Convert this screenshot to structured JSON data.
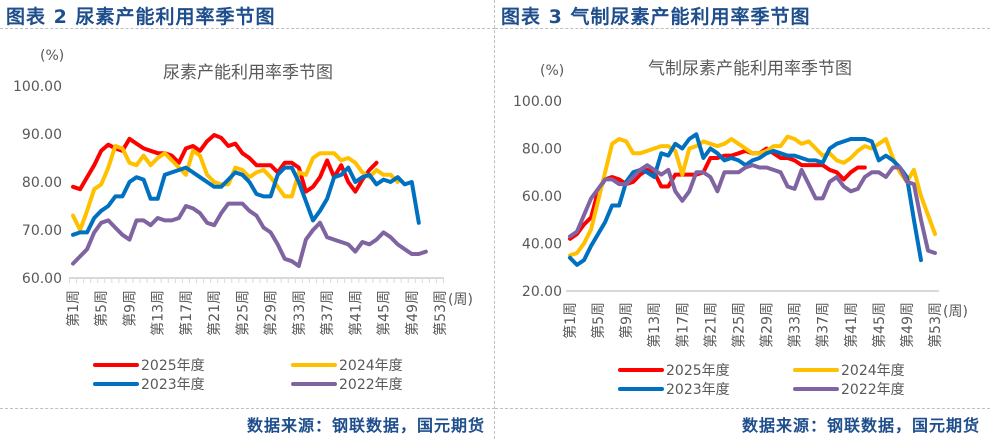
{
  "figures": [
    {
      "fig_title": "图表 2 尿素产能利用率季节图",
      "source": "数据来源：钢联数据，国元期货"
    },
    {
      "fig_title": "图表 3 气制尿素产能利用率季节图",
      "source": "数据来源：钢联数据，国元期货"
    }
  ],
  "chart_data": [
    {
      "type": "line",
      "title": "尿素产能利用率季节图",
      "ylabel": "(%)",
      "xlabel": "(周)",
      "ylim": [
        60,
        100
      ],
      "yticks": [
        "60.00",
        "70.00",
        "80.00",
        "90.00",
        "100.00"
      ],
      "ytick_values": [
        60,
        70,
        80,
        90,
        100
      ],
      "x": [
        1,
        2,
        3,
        4,
        5,
        6,
        7,
        8,
        9,
        10,
        11,
        12,
        13,
        14,
        15,
        16,
        17,
        18,
        19,
        20,
        21,
        22,
        23,
        24,
        25,
        26,
        27,
        28,
        29,
        30,
        31,
        32,
        33,
        34,
        35,
        36,
        37,
        38,
        39,
        40,
        41,
        42,
        43,
        44,
        45,
        46,
        47,
        48,
        49,
        50,
        51,
        52,
        53
      ],
      "xtick_labels": [
        "第1周",
        "第5周",
        "第9周",
        "第13周",
        "第17周",
        "第21周",
        "第25周",
        "第29周",
        "第33周",
        "第37周",
        "第41周",
        "第45周",
        "第49周",
        "第53周"
      ],
      "xtick_weeks": [
        1,
        5,
        9,
        13,
        17,
        21,
        25,
        29,
        33,
        37,
        41,
        45,
        49,
        53
      ],
      "grid": false,
      "legend": "bottom",
      "series": [
        {
          "name": "2025年度",
          "color": "#ff0000",
          "values": [
            79,
            78.5,
            81,
            83.5,
            86.5,
            87.8,
            87,
            86.5,
            89,
            88,
            87,
            86.5,
            86,
            86,
            85.5,
            84,
            87,
            87.5,
            86.5,
            88.5,
            89.8,
            89.2,
            87.5,
            88,
            86,
            85,
            83.5,
            83.5,
            83.5,
            82,
            84,
            84,
            83,
            78,
            79,
            81,
            84.5,
            81,
            83.5,
            80,
            78,
            80.5,
            82.5,
            84
          ]
        },
        {
          "name": "2024年度",
          "color": "#ffc000",
          "values": [
            73,
            70,
            74,
            78.5,
            79.5,
            83,
            87.5,
            87,
            84,
            83.5,
            85.5,
            83.5,
            85,
            86,
            84.5,
            83,
            81.5,
            86.5,
            85.5,
            81.5,
            80,
            79.5,
            79.5,
            83,
            82.5,
            81,
            82,
            82.5,
            81,
            79,
            77,
            77,
            82,
            81.5,
            85,
            86,
            86,
            86,
            84.5,
            85,
            84,
            82,
            81,
            82.5,
            81.5,
            81.5,
            80
          ]
        },
        {
          "name": "2023年度",
          "color": "#0070c0",
          "values": [
            69,
            69.5,
            69.5,
            72.5,
            74,
            75,
            77,
            77,
            80,
            81,
            80.5,
            76.5,
            76.5,
            81.5,
            82,
            82.5,
            83,
            82,
            81,
            80,
            79,
            79,
            80.5,
            82,
            81.5,
            80,
            77.5,
            77,
            77,
            81.5,
            83,
            83,
            80,
            76,
            72,
            74,
            76.5,
            81,
            81.5,
            83,
            80,
            81,
            81.5,
            79.5,
            80.5,
            80,
            81,
            79.5,
            80,
            71.5
          ]
        },
        {
          "name": "2022年度",
          "color": "#8064a2",
          "values": [
            63,
            64.5,
            66,
            69.5,
            71.5,
            72,
            70.5,
            69,
            68,
            72,
            72,
            71,
            72.5,
            72,
            72,
            72.5,
            75,
            74.5,
            73.5,
            71.5,
            71,
            73.5,
            75.5,
            75.5,
            75.5,
            74,
            73,
            70.5,
            69.5,
            67,
            64,
            63.5,
            62.5,
            68,
            70,
            71.5,
            68.5,
            68,
            67.5,
            67,
            65.5,
            67.5,
            67,
            68,
            69.5,
            68.5,
            67,
            66,
            65,
            65,
            65.5
          ]
        }
      ]
    },
    {
      "type": "line",
      "title": "气制尿素产能利用率季节图",
      "ylabel": "(%)",
      "xlabel": "(周)",
      "ylim": [
        20,
        100
      ],
      "yticks": [
        "20.00",
        "40.00",
        "60.00",
        "80.00",
        "100.00"
      ],
      "ytick_values": [
        20,
        40,
        60,
        80,
        100
      ],
      "x": [
        1,
        2,
        3,
        4,
        5,
        6,
        7,
        8,
        9,
        10,
        11,
        12,
        13,
        14,
        15,
        16,
        17,
        18,
        19,
        20,
        21,
        22,
        23,
        24,
        25,
        26,
        27,
        28,
        29,
        30,
        31,
        32,
        33,
        34,
        35,
        36,
        37,
        38,
        39,
        40,
        41,
        42,
        43,
        44,
        45,
        46,
        47,
        48,
        49,
        50,
        51,
        52,
        53
      ],
      "xtick_labels": [
        "第1周",
        "第5周",
        "第9周",
        "第13周",
        "第17周",
        "第21周",
        "第25周",
        "第29周",
        "第33周",
        "第37周",
        "第41周",
        "第45周",
        "第49周",
        "第53周"
      ],
      "xtick_weeks": [
        1,
        5,
        9,
        13,
        17,
        21,
        25,
        29,
        33,
        37,
        41,
        45,
        49,
        53
      ],
      "grid": false,
      "legend": "bottom",
      "series": [
        {
          "name": "2025年度",
          "color": "#ff0000",
          "values": [
            42,
            44,
            48,
            51,
            62,
            67,
            68,
            67,
            65,
            66,
            69,
            71,
            70,
            64,
            64,
            69,
            69,
            69,
            69,
            70,
            76,
            76,
            77,
            77,
            78,
            79,
            78,
            78,
            80,
            78,
            76,
            76,
            75,
            73,
            73,
            73,
            73,
            71,
            70,
            67,
            70,
            72,
            72
          ]
        },
        {
          "name": "2024年度",
          "color": "#ffc000",
          "values": [
            35,
            36,
            40,
            46,
            58,
            70,
            82,
            84,
            83,
            78,
            78,
            79,
            80,
            81,
            81,
            79,
            69,
            80,
            81,
            83,
            82,
            81,
            82,
            84,
            82,
            80,
            78,
            78,
            79,
            81,
            81,
            85,
            84,
            82,
            83,
            80,
            77,
            78,
            75,
            74,
            76,
            79,
            81,
            80,
            82,
            84,
            76,
            70,
            66,
            71,
            60,
            52,
            44
          ]
        },
        {
          "name": "2023年度",
          "color": "#0070c0",
          "values": [
            34,
            31,
            33,
            39,
            44,
            49,
            56,
            56,
            66,
            70,
            71,
            70,
            68,
            78,
            77,
            82,
            80,
            84,
            86,
            76,
            80,
            78,
            75,
            76,
            75,
            73,
            75,
            76,
            78,
            79,
            78,
            77,
            77,
            76,
            75,
            75,
            74,
            80,
            82,
            83,
            84,
            84,
            84,
            83,
            75,
            77,
            75,
            72,
            68,
            50,
            33
          ]
        },
        {
          "name": "2022年度",
          "color": "#8064a2",
          "values": [
            43,
            45,
            52,
            59,
            63,
            67,
            67,
            65,
            65,
            68,
            71,
            73,
            71,
            69,
            71,
            62,
            58,
            62,
            70,
            70,
            68,
            62,
            70,
            70,
            70,
            72,
            73,
            72,
            72,
            71,
            70,
            64,
            63,
            71,
            65,
            59,
            59,
            66,
            68,
            64,
            62,
            63,
            68,
            70,
            70,
            68,
            72,
            72,
            66,
            65,
            50,
            37,
            36
          ]
        }
      ]
    }
  ]
}
